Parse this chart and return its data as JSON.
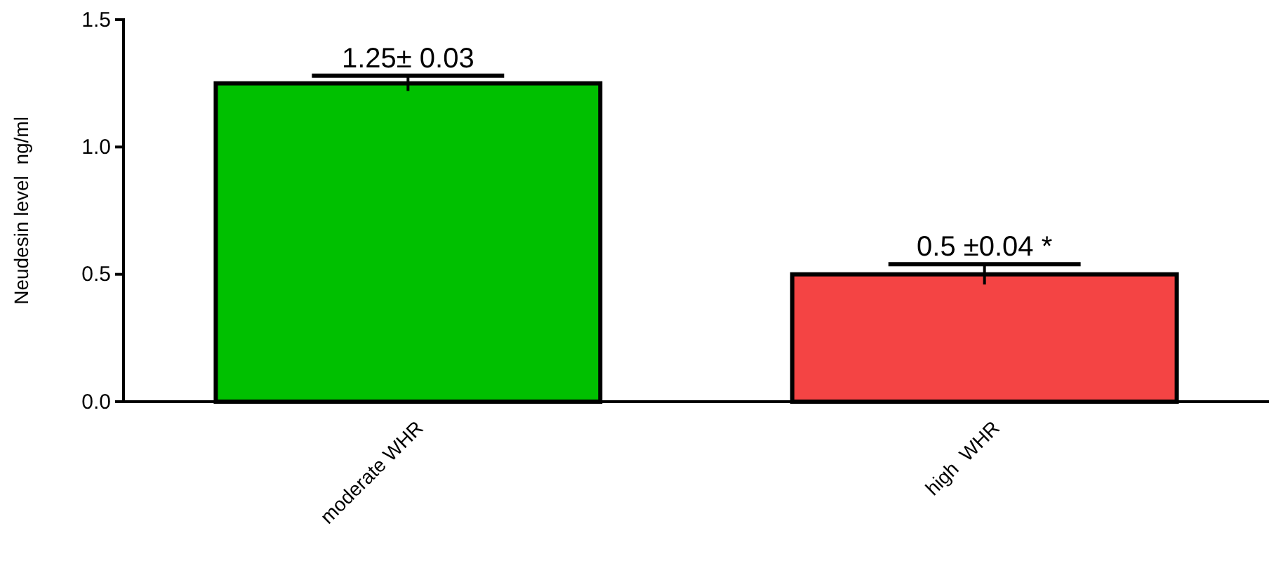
{
  "chart_data": {
    "type": "bar",
    "ylabel": "Neudesin level  ng/ml",
    "categories": [
      "moderate WHR",
      "high  WHR"
    ],
    "values": [
      1.25,
      0.5
    ],
    "colors": [
      "#00c000",
      "#f44444"
    ],
    "errors": [
      0.03,
      0.04
    ],
    "value_labels": [
      "1.25± 0.03",
      "0.5 ±0.04 *"
    ],
    "ylim": [
      0,
      1.5
    ],
    "yticks": [
      {
        "value": 0,
        "label": "0.0"
      },
      {
        "value": 0.5,
        "label": "0.5"
      },
      {
        "value": 1,
        "label": "1.0"
      },
      {
        "value": 1.5,
        "label": "1.5"
      }
    ],
    "grid": false
  }
}
